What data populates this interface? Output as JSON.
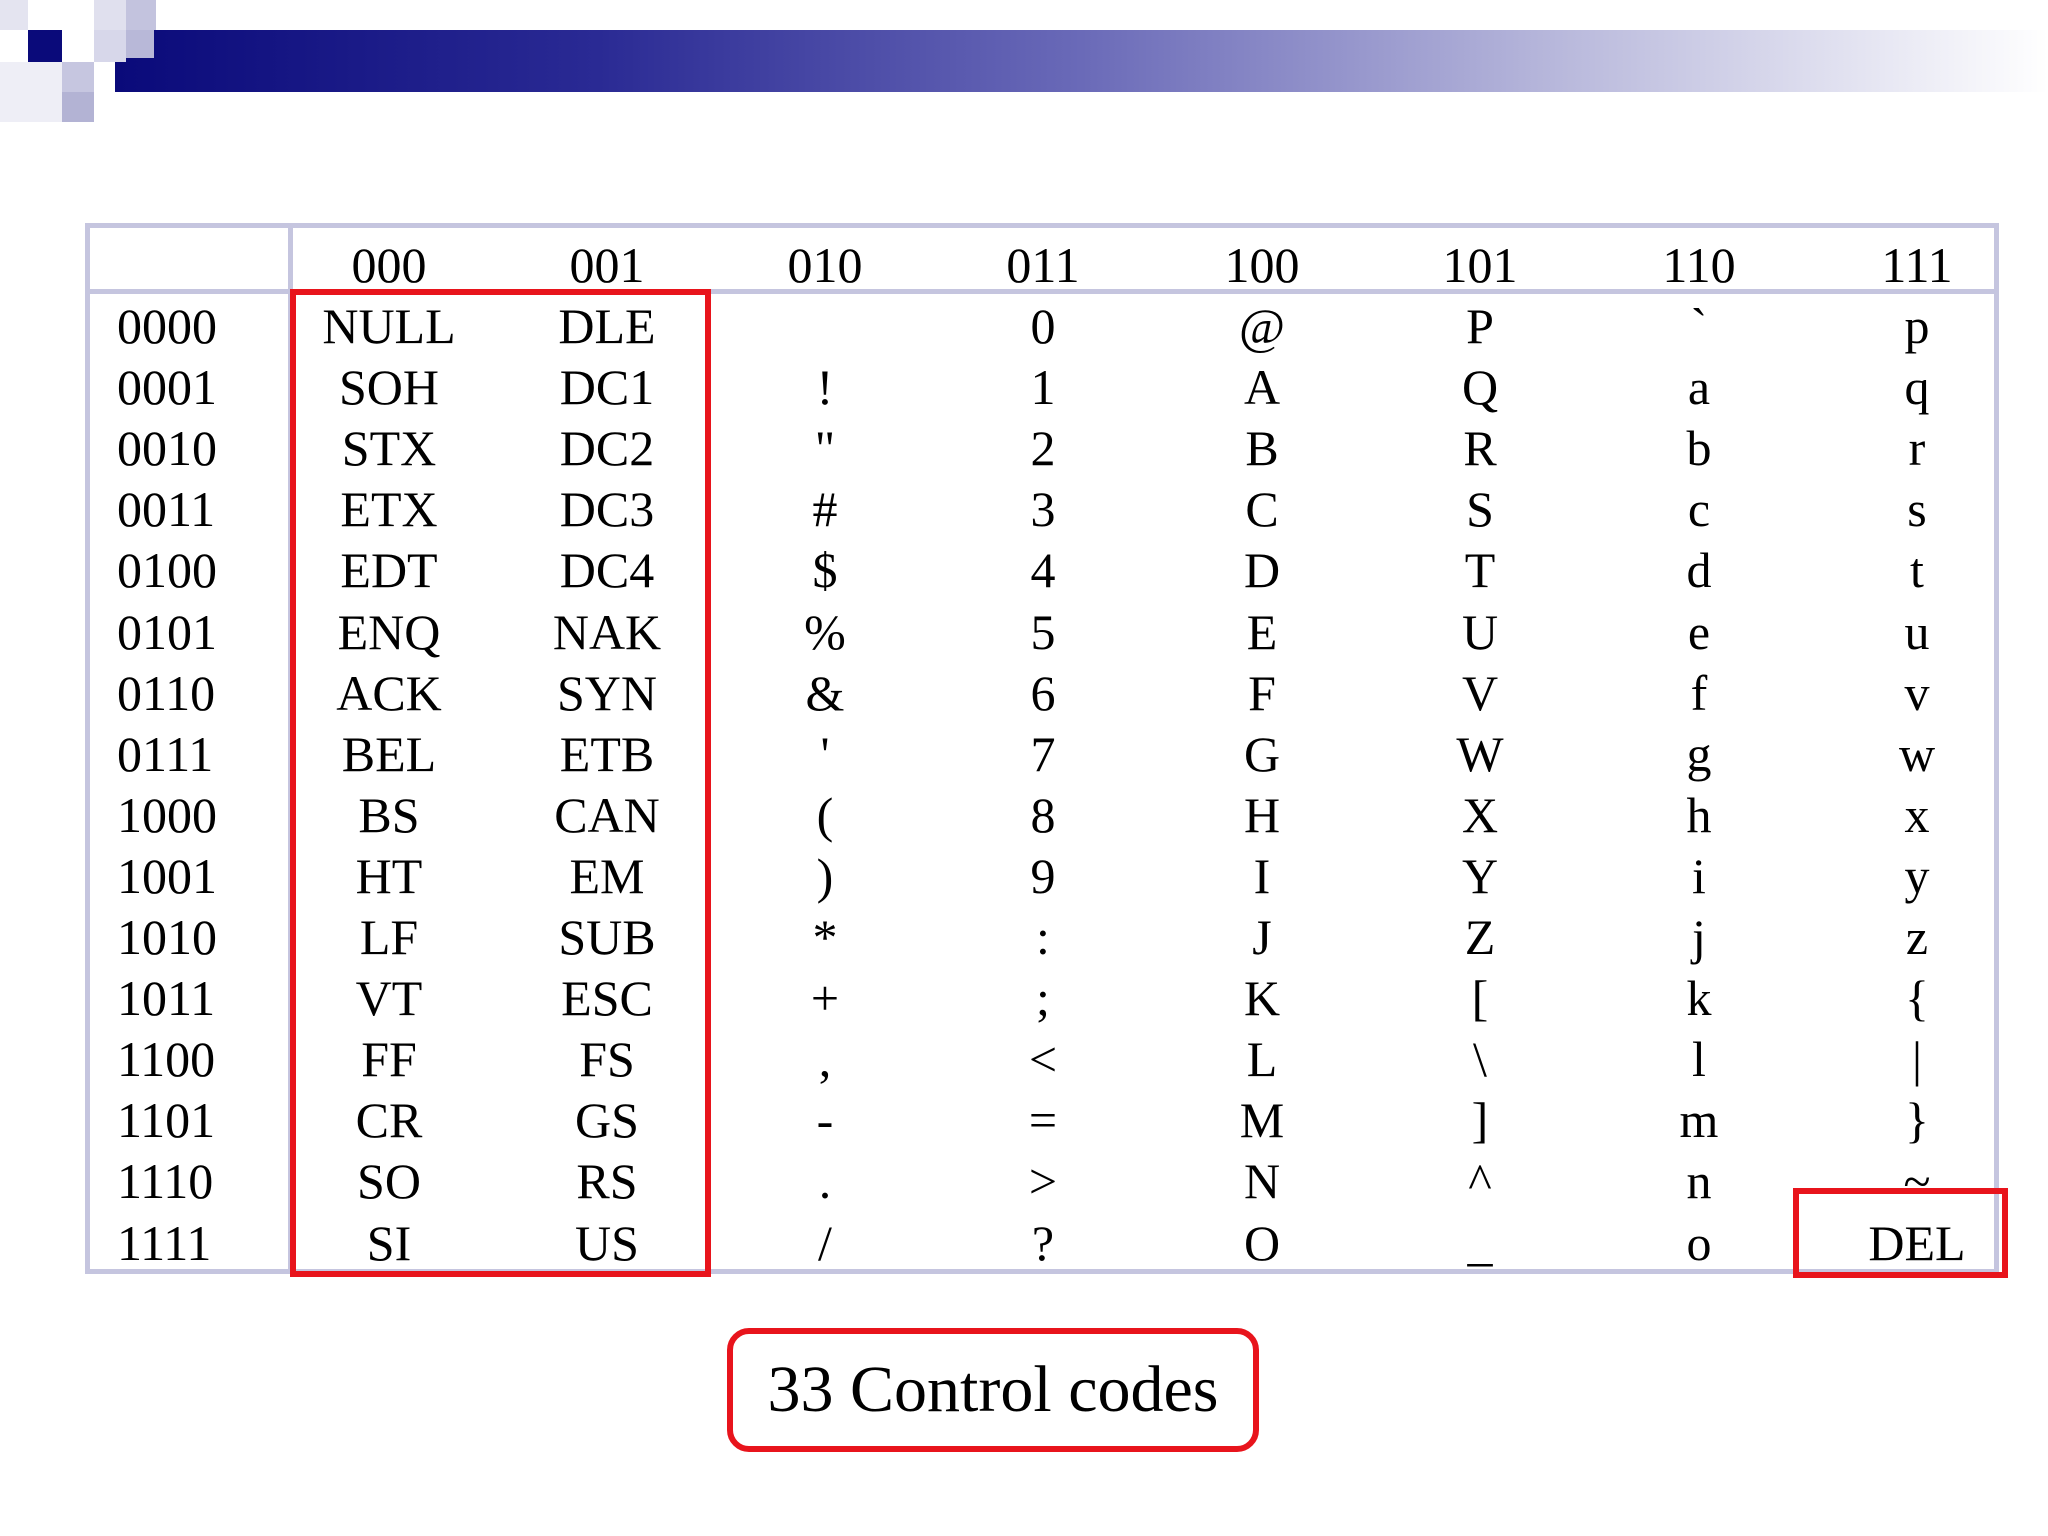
{
  "table": {
    "col_headers": [
      "000",
      "001",
      "010",
      "011",
      "100",
      "101",
      "110",
      "111"
    ],
    "row_headers": [
      "0000",
      "0001",
      "0010",
      "0011",
      "0100",
      "0101",
      "0110",
      "0111",
      "1000",
      "1001",
      "1010",
      "1011",
      "1100",
      "1101",
      "1110",
      "1111"
    ],
    "columns": [
      [
        "NULL",
        "SOH",
        "STX",
        "ETX",
        "EDT",
        "ENQ",
        "ACK",
        "BEL",
        "BS",
        "HT",
        "LF",
        "VT",
        "FF",
        "CR",
        "SO",
        "SI"
      ],
      [
        "DLE",
        "DC1",
        "DC2",
        "DC3",
        "DC4",
        "NAK",
        "SYN",
        "ETB",
        "CAN",
        "EM",
        "SUB",
        "ESC",
        "FS",
        "GS",
        "RS",
        "US"
      ],
      [
        "",
        "!",
        "\"",
        "#",
        "$",
        "%",
        "&",
        "'",
        "(",
        ")",
        "*",
        "+",
        ",",
        "-",
        ".",
        "/"
      ],
      [
        "0",
        "1",
        "2",
        "3",
        "4",
        "5",
        "6",
        "7",
        "8",
        "9",
        ":",
        ";",
        "<",
        "=",
        ">",
        "?"
      ],
      [
        "@",
        "A",
        "B",
        "C",
        "D",
        "E",
        "F",
        "G",
        "H",
        "I",
        "J",
        "K",
        "L",
        "M",
        "N",
        "O"
      ],
      [
        "P",
        "Q",
        "R",
        "S",
        "T",
        "U",
        "V",
        "W",
        "X",
        "Y",
        "Z",
        "[",
        "\\",
        "]",
        "^",
        "_"
      ],
      [
        "`",
        "a",
        "b",
        "c",
        "d",
        "e",
        "f",
        "g",
        "h",
        "i",
        "j",
        "k",
        "l",
        "m",
        "n",
        "o"
      ],
      [
        "p",
        "q",
        "r",
        "s",
        "t",
        "u",
        "v",
        "w",
        "x",
        "y",
        "z",
        "{",
        "|",
        "}",
        "~",
        "DEL"
      ]
    ]
  },
  "caption": "33 Control codes",
  "colors": {
    "highlight": "#e8141c",
    "grid": "#c5c5df",
    "header_dark": "#0a0a7a"
  }
}
